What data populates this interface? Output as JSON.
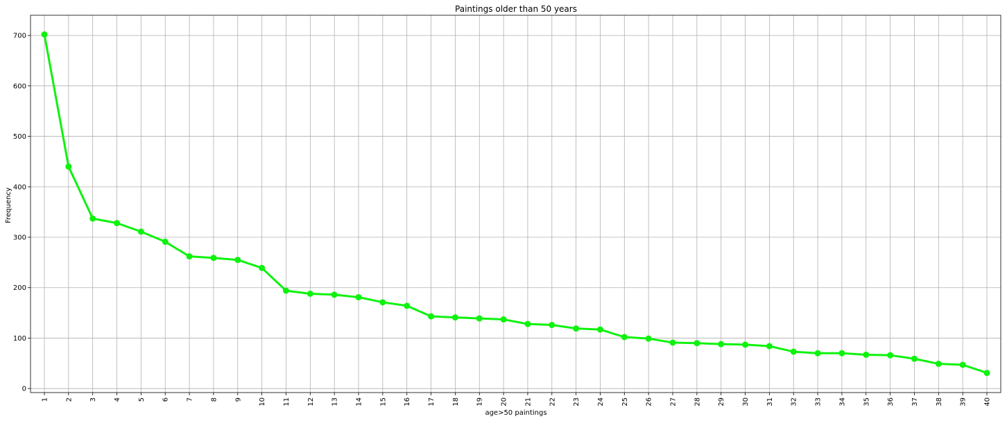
{
  "chart_data": {
    "type": "line",
    "title": "Paintings older than 50 years",
    "xlabel": "age>50 paintings",
    "ylabel": "Frequency",
    "categories": [
      "1",
      "2",
      "3",
      "4",
      "5",
      "6",
      "7",
      "8",
      "9",
      "10",
      "11",
      "12",
      "13",
      "14",
      "15",
      "16",
      "17",
      "18",
      "19",
      "20",
      "21",
      "22",
      "23",
      "24",
      "25",
      "26",
      "27",
      "28",
      "29",
      "30",
      "31",
      "32",
      "33",
      "34",
      "35",
      "36",
      "37",
      "38",
      "39",
      "40"
    ],
    "values": [
      702,
      440,
      337,
      328,
      311,
      291,
      262,
      259,
      255,
      239,
      194,
      188,
      186,
      181,
      171,
      164,
      143,
      141,
      139,
      137,
      128,
      126,
      119,
      117,
      102,
      99,
      91,
      90,
      88,
      87,
      84,
      73,
      70,
      70,
      67,
      66,
      59,
      49,
      47,
      31
    ],
    "yticks": [
      0,
      100,
      200,
      300,
      400,
      500,
      600,
      700
    ],
    "ylim": [
      -8,
      740
    ],
    "grid": true,
    "line_color": "#0ef20e"
  }
}
